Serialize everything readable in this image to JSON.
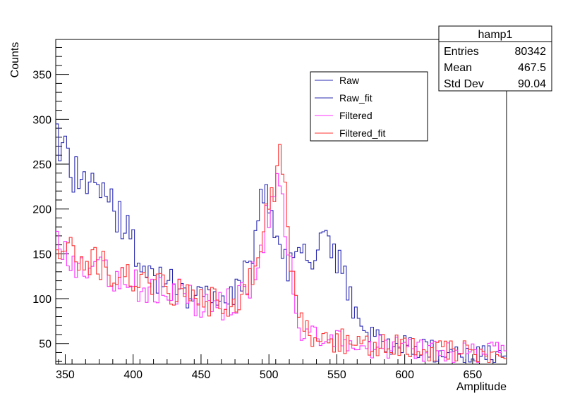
{
  "chart_data": {
    "type": "line",
    "xlabel": "Amplitude",
    "ylabel": "Counts",
    "xlim": [
      343,
      675
    ],
    "ylim": [
      27,
      389
    ],
    "x_ticks": [
      350,
      400,
      450,
      500,
      550,
      600,
      650
    ],
    "y_ticks": [
      50,
      100,
      150,
      200,
      250,
      300,
      350
    ],
    "stats_box": {
      "title": "hamp1",
      "rows": [
        {
          "label": "Entries",
          "value": "80342"
        },
        {
          "label": "Mean",
          "value": "467.5"
        },
        {
          "label": "Std Dev",
          "value": "90.04"
        }
      ]
    },
    "legend": {
      "placement": "top-right",
      "entries": [
        {
          "name": "Raw",
          "color": "#2a2ab0"
        },
        {
          "name": "Raw_fit",
          "color": "#2a2ab0"
        },
        {
          "name": "Filtered",
          "color": "#ff33ff"
        },
        {
          "name": "Filtered_fit",
          "color": "#ff3333"
        }
      ]
    },
    "series": [
      {
        "name": "Raw",
        "color": "#2a2ab0",
        "x": [
          345,
          355,
          365,
          375,
          385,
          395,
          405,
          415,
          425,
          435,
          445,
          455,
          465,
          475,
          485,
          495,
          500,
          505,
          510,
          515,
          520,
          525,
          530,
          535,
          540,
          545,
          550,
          555,
          560,
          565,
          575,
          585,
          595,
          605,
          615,
          625,
          635,
          645,
          655,
          665,
          675
        ],
        "y": [
          285,
          245,
          235,
          215,
          200,
          180,
          145,
          125,
          120,
          110,
          105,
          103,
          100,
          100,
          140,
          205,
          205,
          175,
          140,
          140,
          140,
          140,
          150,
          160,
          160,
          150,
          140,
          125,
          100,
          85,
          60,
          52,
          48,
          45,
          42,
          40,
          38,
          38,
          36,
          36,
          36
        ]
      },
      {
        "name": "Filtered",
        "color": "#ff33ff",
        "x": [
          345,
          355,
          365,
          375,
          385,
          395,
          405,
          415,
          425,
          435,
          445,
          455,
          465,
          475,
          485,
          490,
          495,
          500,
          505,
          510,
          515,
          520,
          525,
          530,
          540,
          550,
          560,
          570,
          580,
          590,
          600,
          610,
          620,
          630,
          640,
          650,
          660,
          670,
          675
        ],
        "y": [
          155,
          145,
          135,
          130,
          125,
          118,
          115,
          110,
          108,
          104,
          98,
          95,
          92,
          95,
          110,
          130,
          160,
          200,
          225,
          215,
          150,
          70,
          58,
          56,
          52,
          52,
          50,
          48,
          46,
          45,
          44,
          43,
          42,
          41,
          40,
          40,
          39,
          39,
          38
        ]
      },
      {
        "name": "Filtered_fit",
        "color": "#ff3333",
        "x": [
          345,
          355,
          365,
          375,
          385,
          395,
          405,
          415,
          425,
          435,
          445,
          455,
          465,
          475,
          485,
          490,
          495,
          500,
          505,
          510,
          515,
          520,
          525,
          530,
          540,
          550,
          560,
          570,
          580,
          590,
          600,
          610,
          620,
          630,
          640,
          650,
          660,
          670,
          675
        ],
        "y": [
          165,
          150,
          140,
          138,
          130,
          122,
          118,
          112,
          108,
          106,
          100,
          97,
          95,
          97,
          112,
          135,
          170,
          210,
          235,
          255,
          160,
          110,
          75,
          62,
          55,
          54,
          52,
          50,
          48,
          47,
          45,
          44,
          43,
          42,
          41,
          41,
          40,
          40,
          40
        ]
      }
    ]
  }
}
